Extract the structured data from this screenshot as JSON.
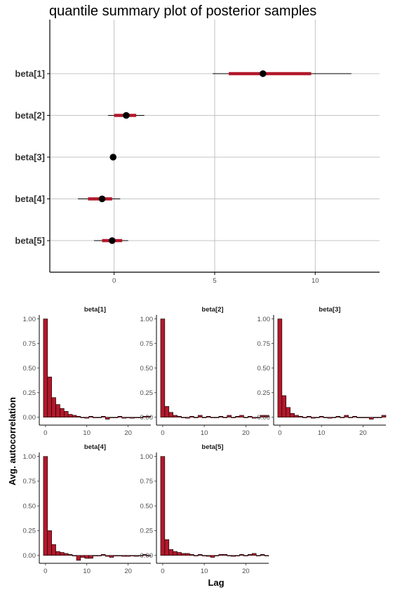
{
  "chart_data": [
    {
      "type": "interval",
      "title": "quantile summary plot of posterior samples",
      "categories": [
        "beta[1]",
        "beta[2]",
        "beta[3]",
        "beta[4]",
        "beta[5]"
      ],
      "x_ticks": [
        0,
        5,
        10
      ],
      "xlim": [
        -3.2,
        13.2
      ],
      "grid": true,
      "colors": {
        "interval": "#b2182b",
        "point": "#000000",
        "grid": "#b3b3b3"
      },
      "intervals": [
        {
          "param": "beta[1]",
          "outer_low": 4.9,
          "inner_low": 5.7,
          "median": 7.4,
          "inner_high": 9.8,
          "outer_high": 11.8
        },
        {
          "param": "beta[2]",
          "outer_low": -0.3,
          "inner_low": 0.0,
          "median": 0.6,
          "inner_high": 1.1,
          "outer_high": 1.5
        },
        {
          "param": "beta[3]",
          "outer_low": -0.15,
          "inner_low": -0.1,
          "median": -0.05,
          "inner_high": 0.0,
          "outer_high": 0.05
        },
        {
          "param": "beta[4]",
          "outer_low": -1.8,
          "inner_low": -1.3,
          "median": -0.6,
          "inner_high": -0.1,
          "outer_high": 0.3
        },
        {
          "param": "beta[5]",
          "outer_low": -1.0,
          "inner_low": -0.6,
          "median": -0.1,
          "inner_high": 0.4,
          "outer_high": 0.7
        }
      ]
    },
    {
      "type": "bar",
      "facets": [
        "beta[1]",
        "beta[2]",
        "beta[3]",
        "beta[4]",
        "beta[5]"
      ],
      "xlabel": "Lag",
      "ylabel": "Avg. autocorrelation",
      "x_ticks": [
        0,
        10,
        20
      ],
      "y_ticks": [
        0.0,
        0.25,
        0.5,
        0.75,
        1.0
      ],
      "y_tick_labels": [
        "0.00",
        "0.25",
        "0.50",
        "0.75",
        "1.00"
      ],
      "lags": [
        0,
        1,
        2,
        3,
        4,
        5,
        6,
        7,
        8,
        9,
        10,
        11,
        12,
        13,
        14,
        15,
        16,
        17,
        18,
        19,
        20,
        21,
        22,
        23,
        24,
        25
      ],
      "xlim": [
        -1.5,
        25.5
      ],
      "ylim": [
        -0.08,
        1.04
      ],
      "bar_color": "#b2182b",
      "series": [
        {
          "name": "beta[1]",
          "values": [
            1.0,
            0.41,
            0.2,
            0.13,
            0.09,
            0.06,
            0.03,
            0.02,
            0.01,
            0.0,
            -0.01,
            0.01,
            0.0,
            0.0,
            0.01,
            -0.02,
            0.0,
            0.0,
            0.01,
            -0.01,
            0.0,
            -0.01,
            0.0,
            0.0,
            0.01,
            0.01
          ]
        },
        {
          "name": "beta[2]",
          "values": [
            1.0,
            0.11,
            0.05,
            0.02,
            0.01,
            0.0,
            -0.01,
            0.01,
            0.0,
            0.02,
            0.0,
            0.01,
            0.0,
            0.0,
            0.01,
            0.0,
            0.02,
            0.0,
            0.01,
            0.02,
            0.0,
            0.01,
            -0.01,
            0.0,
            0.02,
            0.02
          ]
        },
        {
          "name": "beta[3]",
          "values": [
            1.0,
            0.22,
            0.1,
            0.04,
            0.02,
            0.01,
            0.0,
            0.01,
            -0.01,
            0.0,
            0.01,
            0.0,
            -0.01,
            0.0,
            0.01,
            0.0,
            0.02,
            0.0,
            0.01,
            0.0,
            0.0,
            0.0,
            -0.02,
            0.0,
            0.0,
            0.02
          ]
        },
        {
          "name": "beta[4]",
          "values": [
            1.0,
            0.25,
            0.11,
            0.04,
            0.03,
            0.02,
            0.01,
            0.0,
            -0.05,
            -0.02,
            -0.03,
            -0.03,
            0.0,
            0.0,
            0.01,
            -0.01,
            -0.02,
            0.0,
            0.0,
            -0.01,
            -0.01,
            0.0,
            -0.01,
            0.0,
            0.01,
            0.0
          ]
        },
        {
          "name": "beta[5]",
          "values": [
            1.0,
            0.16,
            0.06,
            0.04,
            0.03,
            0.02,
            0.02,
            0.01,
            0.0,
            0.01,
            0.0,
            -0.01,
            -0.02,
            0.0,
            0.01,
            0.01,
            0.0,
            -0.01,
            0.0,
            0.01,
            0.0,
            0.01,
            0.02,
            0.0,
            0.01,
            0.0
          ]
        }
      ]
    }
  ]
}
